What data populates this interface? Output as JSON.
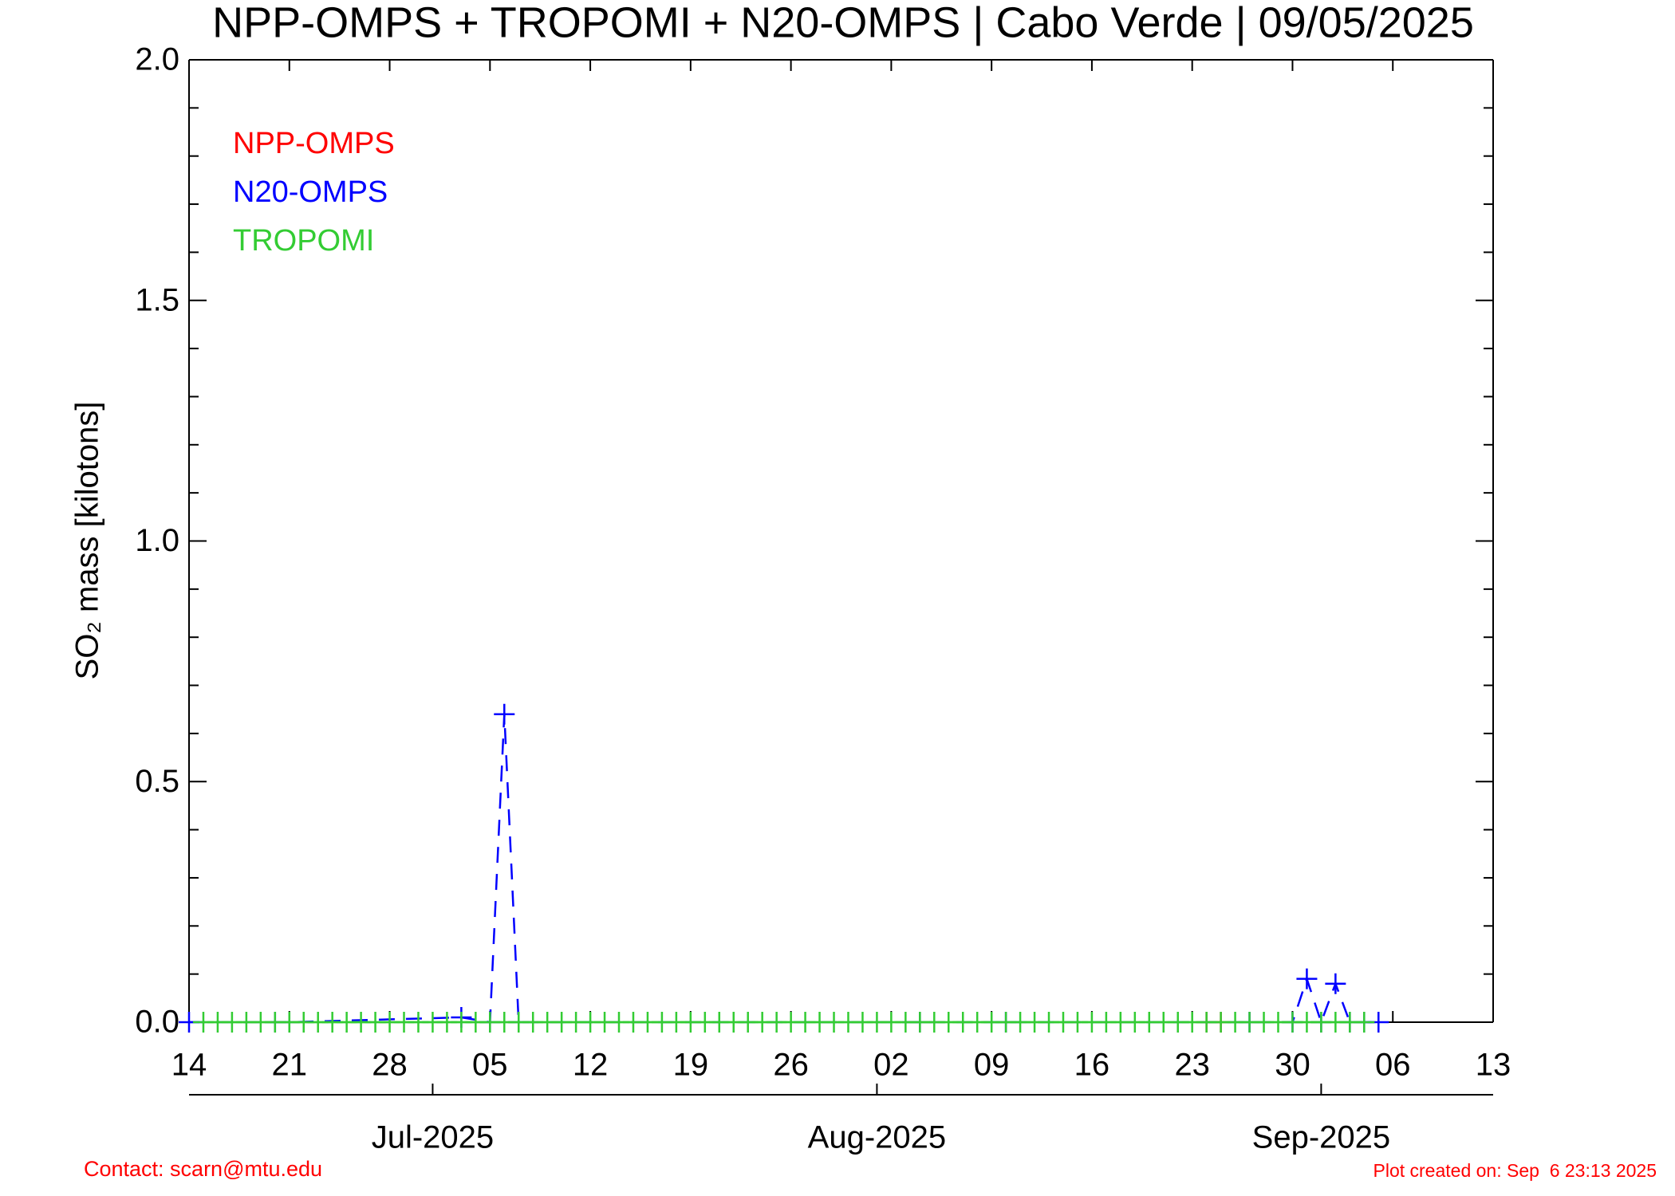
{
  "chart_data": {
    "type": "line",
    "title": "NPP-OMPS + TROPOMI + N20-OMPS | Cabo Verde | 09/05/2025",
    "y_label": "SO₂ mass [kilotons]",
    "xlim": [
      "2025-06-14",
      "2025-09-13"
    ],
    "xticks": [
      {
        "value": "2025-06-14",
        "label": "14"
      },
      {
        "value": "2025-06-21",
        "label": "21"
      },
      {
        "value": "2025-06-28",
        "label": "28"
      },
      {
        "value": "2025-07-05",
        "label": "05"
      },
      {
        "value": "2025-07-12",
        "label": "12"
      },
      {
        "value": "2025-07-19",
        "label": "19"
      },
      {
        "value": "2025-07-26",
        "label": "26"
      },
      {
        "value": "2025-08-02",
        "label": "02"
      },
      {
        "value": "2025-08-09",
        "label": "09"
      },
      {
        "value": "2025-08-16",
        "label": "16"
      },
      {
        "value": "2025-08-23",
        "label": "23"
      },
      {
        "value": "2025-08-30",
        "label": "30"
      },
      {
        "value": "2025-09-06",
        "label": "06"
      },
      {
        "value": "2025-09-13",
        "label": "13"
      }
    ],
    "month_ticks": [
      {
        "value": "2025-07-01",
        "label": "Jul-2025"
      },
      {
        "value": "2025-08-01",
        "label": "Aug-2025"
      },
      {
        "value": "2025-09-01",
        "label": "Sep-2025"
      }
    ],
    "ylim": [
      0,
      2
    ],
    "yticks": [
      {
        "value": 0,
        "label": "0.0"
      },
      {
        "value": 0.5,
        "label": "0.5"
      },
      {
        "value": 1,
        "label": "1.0"
      },
      {
        "value": 1.5,
        "label": "1.5"
      },
      {
        "value": 2,
        "label": "2.0"
      }
    ],
    "yminorticks": [
      0.1,
      0.2,
      0.3,
      0.4,
      0.6,
      0.7,
      0.8,
      0.9,
      1.1,
      1.2,
      1.3,
      1.4,
      1.6,
      1.7,
      1.8,
      1.9
    ],
    "series": [
      {
        "name": "NPP-OMPS",
        "color": "#ff0000",
        "dashed": false,
        "x": [
          "2025-08-24",
          "2025-08-25"
        ],
        "values": [
          0,
          0
        ]
      },
      {
        "name": "N20-OMPS",
        "color": "#0000ff",
        "dashed": true,
        "x": [
          "2025-06-14",
          "2025-06-20",
          "2025-06-21",
          "2025-07-03",
          "2025-07-05",
          "2025-07-06",
          "2025-07-07",
          "2025-08-04",
          "2025-08-10",
          "2025-08-27",
          "2025-08-30",
          "2025-08-31",
          "2025-09-01",
          "2025-09-02",
          "2025-09-03",
          "2025-09-04",
          "2025-09-05"
        ],
        "values": [
          0,
          0,
          0,
          0.01,
          0,
          0.64,
          0,
          0,
          0,
          0,
          0,
          0.09,
          0,
          0.08,
          0,
          0,
          0
        ]
      },
      {
        "name": "TROPOMI",
        "color": "#33cc33",
        "dashed": false,
        "x": [
          "2025-06-15",
          "2025-06-16",
          "2025-06-17",
          "2025-06-18",
          "2025-06-19",
          "2025-06-20",
          "2025-06-21",
          "2025-06-22",
          "2025-06-23",
          "2025-06-24",
          "2025-06-25",
          "2025-06-26",
          "2025-06-27",
          "2025-06-28",
          "2025-06-29",
          "2025-06-30",
          "2025-07-01",
          "2025-07-02",
          "2025-07-03",
          "2025-07-04",
          "2025-07-05",
          "2025-07-06",
          "2025-07-07",
          "2025-07-08",
          "2025-07-09",
          "2025-07-10",
          "2025-07-11",
          "2025-07-12",
          "2025-07-13",
          "2025-07-14",
          "2025-07-15",
          "2025-07-16",
          "2025-07-17",
          "2025-07-18",
          "2025-07-19",
          "2025-07-20",
          "2025-07-21",
          "2025-07-22",
          "2025-07-23",
          "2025-07-24",
          "2025-07-25",
          "2025-07-26",
          "2025-07-27",
          "2025-07-28",
          "2025-07-29",
          "2025-07-30",
          "2025-07-31",
          "2025-08-01",
          "2025-08-02",
          "2025-08-03",
          "2025-08-04",
          "2025-08-05",
          "2025-08-06",
          "2025-08-07",
          "2025-08-08",
          "2025-08-09",
          "2025-08-10",
          "2025-08-11",
          "2025-08-12",
          "2025-08-13",
          "2025-08-14",
          "2025-08-15",
          "2025-08-16",
          "2025-08-17",
          "2025-08-18",
          "2025-08-19",
          "2025-08-20",
          "2025-08-21",
          "2025-08-22",
          "2025-08-23",
          "2025-08-24",
          "2025-08-25",
          "2025-08-26",
          "2025-08-27",
          "2025-08-28",
          "2025-08-29",
          "2025-08-30",
          "2025-08-31",
          "2025-09-01",
          "2025-09-02",
          "2025-09-03",
          "2025-09-04"
        ],
        "values": [
          0,
          0,
          0,
          0,
          0,
          0,
          0,
          0,
          0,
          0,
          0,
          0,
          0,
          0,
          0,
          0,
          0,
          0,
          0,
          0,
          0,
          0,
          0,
          0,
          0,
          0,
          0,
          0,
          0,
          0,
          0,
          0,
          0,
          0,
          0,
          0,
          0,
          0,
          0,
          0,
          0,
          0,
          0,
          0,
          0,
          0,
          0,
          0,
          0,
          0,
          0,
          0,
          0,
          0,
          0,
          0,
          0,
          0,
          0,
          0,
          0,
          0,
          0,
          0,
          0,
          0,
          0,
          0,
          0,
          0,
          0,
          0,
          0,
          0,
          0,
          0,
          0,
          0,
          0,
          0,
          0,
          0
        ]
      }
    ],
    "contact": "Contact: scarn@mtu.edu",
    "created": "Plot created on: Sep  6 23:13 2025"
  }
}
